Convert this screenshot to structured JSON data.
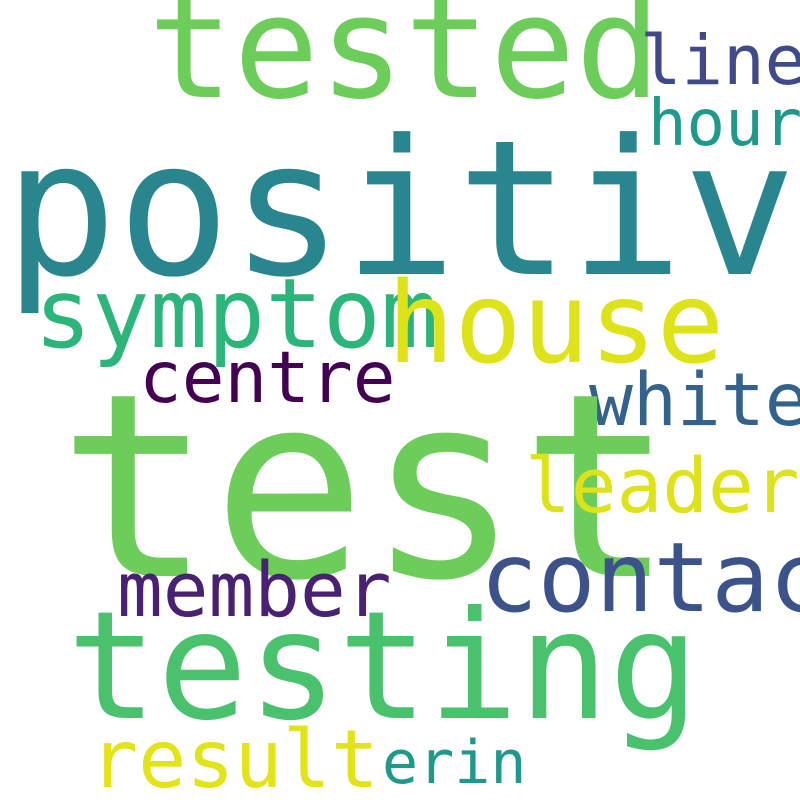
{
  "words": [
    {
      "text": "tested",
      "color": "#6ccd5a"
    },
    {
      "text": "line",
      "color": "#3e4a89"
    },
    {
      "text": "hour",
      "color": "#1f9a8a"
    },
    {
      "text": "positive",
      "color": "#29868e"
    },
    {
      "text": "symptom",
      "color": "#2cb57a"
    },
    {
      "text": "house",
      "color": "#dde318"
    },
    {
      "text": "centre",
      "color": "#440154"
    },
    {
      "text": "white",
      "color": "#33638d"
    },
    {
      "text": "test",
      "color": "#6ccd5a"
    },
    {
      "text": "leader",
      "color": "#dde318"
    },
    {
      "text": "contact",
      "color": "#3b528b"
    },
    {
      "text": "member",
      "color": "#482173"
    },
    {
      "text": "testing",
      "color": "#4ac16d"
    },
    {
      "text": "result",
      "color": "#e2e418"
    },
    {
      "text": "erin",
      "color": "#1f998a"
    }
  ]
}
